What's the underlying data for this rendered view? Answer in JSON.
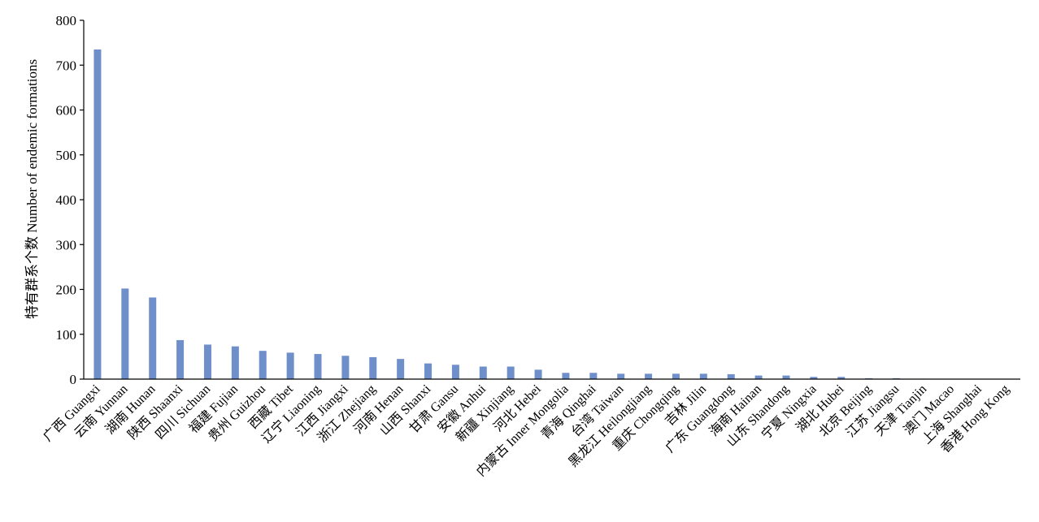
{
  "chart_data": {
    "type": "bar",
    "title": "",
    "xlabel": "",
    "ylabel": "特有群系个数 Number of endemic formations",
    "ylim": [
      0,
      800
    ],
    "yticks": [
      0,
      100,
      200,
      300,
      400,
      500,
      600,
      700,
      800
    ],
    "grid": false,
    "bar_color": "#6f8fcb",
    "categories": [
      "广西 Guangxi",
      "云南 Yunnan",
      "湖南 Hunan",
      "陕西 Shaanxi",
      "四川 Sichuan",
      "福建 Fujian",
      "贵州 Guizhou",
      "西藏 Tibet",
      "辽宁 Liaoning",
      "江西 Jiangxi",
      "浙江 Zhejiang",
      "河南 Henan",
      "山西 Shanxi",
      "甘肃 Gansu",
      "安徽 Anhui",
      "新疆 Xinjiang",
      "河北 Hebei",
      "内蒙古 Inner Mongolia",
      "青海 Qinghai",
      "台湾 Taiwan",
      "黑龙江 Heilongjiang",
      "重庆 Chongqing",
      "吉林 Jilin",
      "广东 Guangdong",
      "海南 Hainan",
      "山东 Shandong",
      "宁夏 Ningxia",
      "湖北 Hubei",
      "北京 Beijing",
      "江苏 Jiangsu",
      "天津 Tianjin",
      "澳门 Macao",
      "上海 Shanghai",
      "香港 Hong Kong"
    ],
    "values": [
      735,
      202,
      182,
      87,
      77,
      73,
      63,
      59,
      56,
      52,
      49,
      45,
      35,
      32,
      28,
      28,
      21,
      14,
      14,
      12,
      12,
      12,
      12,
      11,
      8,
      8,
      5,
      5,
      2,
      2,
      1,
      0,
      0,
      0
    ]
  }
}
